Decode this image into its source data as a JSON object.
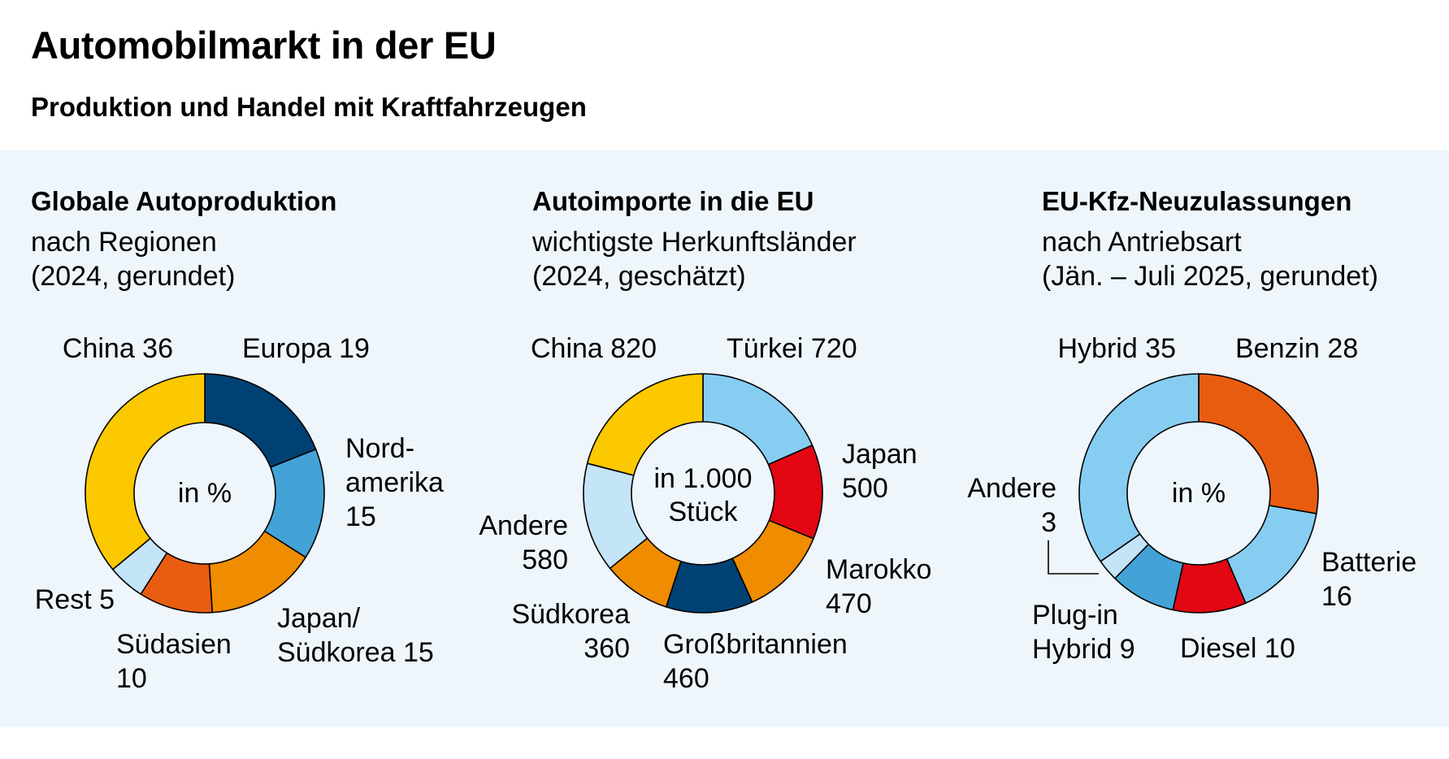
{
  "title": "Automobilmarkt in der EU",
  "subtitle": "Produktion und Handel mit Kraftfahrzeugen",
  "chart_data": [
    {
      "type": "pie",
      "title": "Globale Autoproduktion",
      "subtitle_lines": [
        "nach Regionen",
        "(2024, gerundet)"
      ],
      "center_label": [
        "in %"
      ],
      "unit": "%",
      "slices": [
        {
          "name": "Europa",
          "value": 19,
          "color": "#004174",
          "label_lines": [
            "Europa 19"
          ]
        },
        {
          "name": "Nordamerika",
          "value": 15,
          "color": "#43a3d6",
          "label_lines": [
            "Nord-",
            "amerika",
            "15"
          ]
        },
        {
          "name": "Japan/Südkorea",
          "value": 15,
          "color": "#f08c00",
          "label_lines": [
            "Japan/",
            "Südkorea 15"
          ]
        },
        {
          "name": "Südasien",
          "value": 10,
          "color": "#e85c10",
          "label_lines": [
            "Südasien",
            "10"
          ]
        },
        {
          "name": "Rest",
          "value": 5,
          "color": "#c4e4f7",
          "label_lines": [
            "Rest 5"
          ]
        },
        {
          "name": "China",
          "value": 36,
          "color": "#fcc800",
          "label_lines": [
            "China 36"
          ]
        }
      ]
    },
    {
      "type": "pie",
      "title": "Autoimporte in die EU",
      "subtitle_lines": [
        "wichtigste Herkunftsländer",
        "(2024, geschätzt)"
      ],
      "center_label": [
        "in 1.000",
        "Stück"
      ],
      "unit": "1.000 Stück",
      "slices": [
        {
          "name": "Türkei",
          "value": 720,
          "color": "#87cdf2",
          "label_lines": [
            "Türkei 720"
          ]
        },
        {
          "name": "Japan",
          "value": 500,
          "color": "#e30613",
          "label_lines": [
            "Japan",
            "500"
          ]
        },
        {
          "name": "Marokko",
          "value": 470,
          "color": "#f08c00",
          "label_lines": [
            "Marokko",
            "470"
          ]
        },
        {
          "name": "Großbritannien",
          "value": 460,
          "color": "#004174",
          "label_lines": [
            "Großbritannien",
            "460"
          ]
        },
        {
          "name": "Südkorea",
          "value": 360,
          "color": "#f08c00",
          "label_lines": [
            "Südkorea",
            "360"
          ]
        },
        {
          "name": "Andere",
          "value": 580,
          "color": "#c4e4f7",
          "label_lines": [
            "Andere",
            "580"
          ]
        },
        {
          "name": "China",
          "value": 820,
          "color": "#fcc800",
          "label_lines": [
            "China 820"
          ]
        }
      ]
    },
    {
      "type": "pie",
      "title": "EU-Kfz-Neuzulassungen",
      "subtitle_lines": [
        "nach Antriebsart",
        "(Jän. – Juli 2025, gerundet)"
      ],
      "center_label": [
        "in %"
      ],
      "unit": "%",
      "slices": [
        {
          "name": "Benzin",
          "value": 28,
          "color": "#e85c10",
          "label_lines": [
            "Benzin 28"
          ]
        },
        {
          "name": "Batterie",
          "value": 16,
          "color": "#87cdf2",
          "label_lines": [
            "Batterie",
            "16"
          ]
        },
        {
          "name": "Diesel",
          "value": 10,
          "color": "#e30613",
          "label_lines": [
            "Diesel 10"
          ]
        },
        {
          "name": "Plug-in Hybrid",
          "value": 9,
          "color": "#43a3d6",
          "label_lines": [
            "Plug-in",
            "Hybrid 9"
          ]
        },
        {
          "name": "Andere",
          "value": 3,
          "color": "#c4e4f7",
          "label_lines": [
            "Andere",
            "3"
          ]
        },
        {
          "name": "Hybrid",
          "value": 35,
          "color": "#87cdf2",
          "label_lines": [
            "Hybrid 35"
          ]
        }
      ]
    }
  ]
}
